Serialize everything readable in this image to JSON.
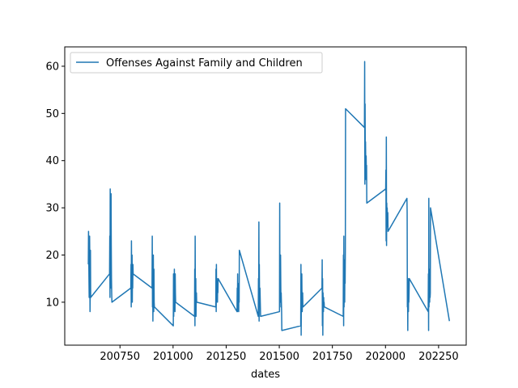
{
  "chart_data": {
    "type": "line",
    "title": "",
    "xlabel": "dates",
    "ylabel": "",
    "xlim": [
      200490,
      202380
    ],
    "ylim": [
      0.9,
      64.1
    ],
    "xticks": [
      200750,
      201000,
      201250,
      201500,
      201750,
      202000,
      202250
    ],
    "yticks": [
      10,
      20,
      30,
      40,
      50,
      60
    ],
    "legend": {
      "placement": "upper-left"
    },
    "grid": false,
    "series": [
      {
        "name": "Offenses Against Family and Children",
        "color": "#1f77b4",
        "x": [
          200601,
          200602,
          200603,
          200604,
          200605,
          200606,
          200607,
          200608,
          200609,
          200610,
          200611,
          200612,
          200701,
          200702,
          200703,
          200704,
          200705,
          200706,
          200707,
          200708,
          200709,
          200710,
          200711,
          200712,
          200801,
          200802,
          200803,
          200804,
          200805,
          200806,
          200807,
          200808,
          200809,
          200810,
          200811,
          200812,
          200901,
          200902,
          200903,
          200904,
          200905,
          200906,
          200907,
          200908,
          200909,
          200910,
          200911,
          200912,
          201001,
          201002,
          201003,
          201004,
          201005,
          201006,
          201007,
          201008,
          201009,
          201010,
          201011,
          201012,
          201101,
          201102,
          201103,
          201104,
          201105,
          201106,
          201107,
          201108,
          201109,
          201110,
          201111,
          201112,
          201201,
          201202,
          201203,
          201204,
          201205,
          201206,
          201207,
          201208,
          201209,
          201210,
          201211,
          201212,
          201301,
          201302,
          201303,
          201304,
          201305,
          201306,
          201307,
          201308,
          201309,
          201310,
          201311,
          201312,
          201401,
          201402,
          201403,
          201404,
          201405,
          201406,
          201407,
          201408,
          201409,
          201410,
          201411,
          201412,
          201501,
          201502,
          201503,
          201504,
          201505,
          201506,
          201507,
          201508,
          201509,
          201510,
          201511,
          201512,
          201601,
          201602,
          201603,
          201604,
          201605,
          201606,
          201607,
          201608,
          201609,
          201610,
          201611,
          201612,
          201701,
          201702,
          201703,
          201704,
          201705,
          201706,
          201707,
          201708,
          201709,
          201710,
          201711,
          201712,
          201801,
          201802,
          201803,
          201804,
          201805,
          201806,
          201807,
          201808,
          201809,
          201810,
          201811,
          201812,
          201901,
          201902,
          201903,
          201904,
          201905,
          201906,
          201907,
          201908,
          201909,
          201910,
          201911,
          201912,
          202001,
          202002,
          202003,
          202004,
          202005,
          202006,
          202007,
          202008,
          202009,
          202010,
          202011,
          202012,
          202101,
          202102,
          202103,
          202104,
          202105,
          202106,
          202107,
          202108,
          202109,
          202110,
          202111,
          202112,
          202201,
          202202,
          202203,
          202204,
          202205,
          202206,
          202207,
          202208,
          202209,
          202210,
          202211,
          202212,
          202301
        ],
        "y": [
          18,
          25,
          20,
          15,
          11,
          22,
          24,
          19,
          8,
          12,
          21,
          11,
          16,
          24,
          11,
          34,
          27,
          13,
          18,
          33,
          22,
          15,
          12,
          10,
          13,
          18,
          9,
          23,
          15,
          12,
          20,
          10,
          17,
          13,
          18,
          16,
          13,
          24,
          9,
          18,
          6,
          14,
          20,
          11,
          8,
          17,
          10,
          9,
          5,
          16,
          7,
          15,
          12,
          17,
          10,
          14,
          8,
          16,
          12,
          10,
          7,
          17,
          5,
          24,
          10,
          12,
          15,
          7,
          11,
          12,
          10,
          10,
          9,
          17,
          8,
          18,
          11,
          15,
          13,
          12,
          10,
          14,
          12,
          15,
          8,
          13,
          8,
          16,
          10,
          12,
          11,
          9,
          8,
          14,
          10,
          21,
          7,
          15,
          9,
          27,
          6,
          18,
          12,
          10,
          13,
          11,
          9,
          7,
          8,
          31,
          12,
          15,
          10,
          20,
          14,
          9,
          12,
          10,
          8,
          4,
          5,
          18,
          3,
          12,
          9,
          16,
          11,
          8,
          10,
          12,
          9,
          9,
          13,
          19,
          5,
          15,
          3,
          12,
          10,
          8,
          11,
          9,
          10,
          9,
          7,
          20,
          5,
          24,
          9,
          17,
          13,
          10,
          19,
          14,
          21,
          51,
          47,
          61,
          35,
          52,
          38,
          44,
          40,
          36,
          41,
          37,
          39,
          31,
          34,
          38,
          23,
          45,
          22,
          31,
          27,
          30,
          28,
          26,
          29,
          25,
          32,
          29,
          9,
          12,
          4,
          15,
          11,
          8,
          13,
          10,
          12,
          15,
          8,
          16,
          4,
          32,
          9,
          17,
          14,
          10,
          13,
          11,
          12,
          30,
          6
        ]
      }
    ]
  }
}
